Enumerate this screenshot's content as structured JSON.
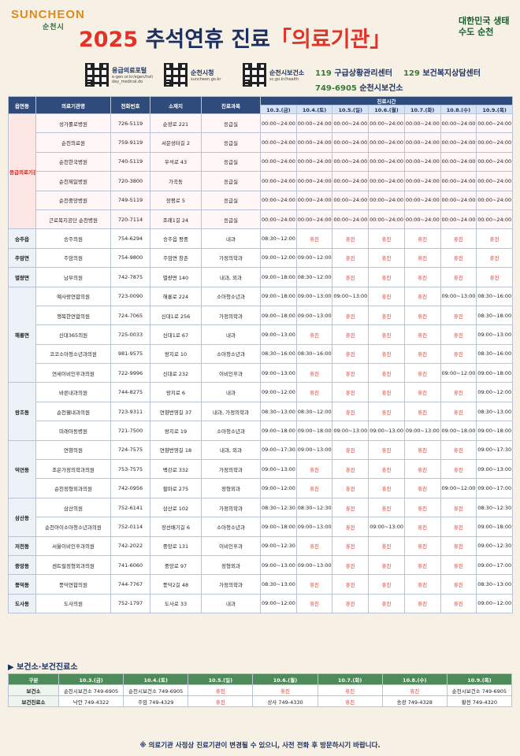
{
  "header": {
    "logo": "SUNCHEON",
    "logo_sub": "순천시",
    "year": "2025",
    "title": "추석연휴 진료",
    "title_bracket": "「의료기관」",
    "slogan": "대한민국 생태수도 순천",
    "links": [
      {
        "label": "응급의료포털",
        "url": "e-gen.or.kr/egen/holiday_medical.do"
      },
      {
        "label": "순천시청",
        "url": "suncheon.go.kr"
      },
      {
        "label": "순천시보건소",
        "url": "sc.go.kr/health"
      }
    ],
    "contacts": [
      {
        "number": "119",
        "label": "구급상황관리센터"
      },
      {
        "number": "129",
        "label": "보건복지상담센터"
      },
      {
        "number": "749-6905",
        "label": "순천시보건소"
      }
    ]
  },
  "table": {
    "columns": [
      "읍면동",
      "의료기관명",
      "전화번호",
      "소재지",
      "진료과목"
    ],
    "time_header": "진료시간",
    "dates": [
      "10.3.(금)",
      "10.4.(토)",
      "10.5.(일)",
      "10.6.(월)",
      "10.7.(화)",
      "10.8.(수)",
      "10.9.(목)"
    ],
    "closed": "휴진",
    "groups": [
      {
        "area": "응급의료기관",
        "emergency": true,
        "rows": [
          [
            "성가롤로병원",
            "726-5119",
            "순광로 221",
            "응급실",
            "00:00~24:00",
            "00:00~24:00",
            "00:00~24:00",
            "00:00~24:00",
            "00:00~24:00",
            "00:00~24:00",
            "00:00~24:00"
          ],
          [
            "순천의료원",
            "759-9119",
            "서문성터길 2",
            "응급실",
            "00:00~24:00",
            "00:00~24:00",
            "00:00~24:00",
            "00:00~24:00",
            "00:00~24:00",
            "00:00~24:00",
            "00:00~24:00"
          ],
          [
            "순천한국병원",
            "740-5119",
            "우석로 43",
            "응급실",
            "00:00~24:00",
            "00:00~24:00",
            "00:00~24:00",
            "00:00~24:00",
            "00:00~24:00",
            "00:00~24:00",
            "00:00~24:00"
          ],
          [
            "순천제일병원",
            "720-3800",
            "가곡동",
            "응급실",
            "00:00~24:00",
            "00:00~24:00",
            "00:00~24:00",
            "00:00~24:00",
            "00:00~24:00",
            "00:00~24:00",
            "00:00~24:00"
          ],
          [
            "순천중앙병원",
            "749-5119",
            "장평로 5",
            "응급실",
            "00:00~24:00",
            "00:00~24:00",
            "00:00~24:00",
            "00:00~24:00",
            "00:00~24:00",
            "00:00~24:00",
            "00:00~24:00"
          ],
          [
            "근로복지공단 순천병원",
            "720-7114",
            "조례1길 24",
            "응급실",
            "00:00~24:00",
            "00:00~24:00",
            "00:00~24:00",
            "00:00~24:00",
            "00:00~24:00",
            "00:00~24:00",
            "00:00~24:00"
          ]
        ]
      },
      {
        "area": "승주읍",
        "rows": [
          [
            "승주의원",
            "754-6294",
            "승주읍 평중",
            "내과",
            "08:30~12:00",
            "휴진",
            "휴진",
            "휴진",
            "휴진",
            "휴진",
            "휴진"
          ]
        ]
      },
      {
        "area": "주암면",
        "rows": [
          [
            "주암의원",
            "754-9800",
            "주암면 창촌",
            "가정의학과",
            "09:00~12:00",
            "09:00~12:00",
            "휴진",
            "휴진",
            "휴진",
            "휴진",
            "휴진"
          ]
        ]
      },
      {
        "area": "별량면",
        "rows": [
          [
            "남부의원",
            "742-7875",
            "별량면 140",
            "내과, 외과",
            "09:00~18:00",
            "08:30~12:00",
            "휴진",
            "휴진",
            "휴진",
            "휴진",
            "휴진"
          ]
        ]
      },
      {
        "area": "해룡면",
        "rows": [
          [
            "예사랑연합의원",
            "723-0090",
            "해룡로 224",
            "소아청소년과",
            "09:00~18:00",
            "09:00~13:00",
            "09:00~13:00",
            "휴진",
            "휴진",
            "09:00~13:00",
            "08:30~16:00"
          ],
          [
            "행복한연합의원",
            "724-7065",
            "신대1로 256",
            "가정의학과",
            "09:00~18:00",
            "09:00~13:00",
            "휴진",
            "휴진",
            "휴진",
            "휴진",
            "08:30~18:00"
          ],
          [
            "신대365의원",
            "725-0033",
            "신대1로 67",
            "내과",
            "09:00~13:00",
            "휴진",
            "휴진",
            "휴진",
            "휴진",
            "휴진",
            "09:00~13:00"
          ],
          [
            "코코소아청소년과의원",
            "981-9575",
            "왕지로 10",
            "소아청소년과",
            "08:30~16:00",
            "08:30~16:00",
            "휴진",
            "휴진",
            "휴진",
            "휴진",
            "08:30~16:00"
          ],
          [
            "연세이비인후과의원",
            "722-9996",
            "신대로 232",
            "이비인후과",
            "09:00~13:00",
            "휴진",
            "휴진",
            "휴진",
            "휴진",
            "09:00~12:00",
            "09:00~18:00"
          ]
        ]
      },
      {
        "area": "왕조동",
        "rows": [
          [
            "바른내과의원",
            "744-8275",
            "왕지로 6",
            "내과",
            "09:00~12:00",
            "휴진",
            "휴진",
            "휴진",
            "휴진",
            "휴진",
            "09:00~12:00"
          ],
          [
            "순천웰내과의원",
            "723-9311",
            "연향번영길 37",
            "내과, 가정의학과",
            "08:30~13:00",
            "08:30~12:00",
            "휴진",
            "휴진",
            "휴진",
            "휴진",
            "08:30~13:00"
          ],
          [
            "미래아동병원",
            "721-7500",
            "왕지로 19",
            "소아청소년과",
            "09:00~18:00",
            "09:00~18:00",
            "09:00~13:00",
            "09:00~13:00",
            "09:00~13:00",
            "09:00~18:00",
            "09:00~18:00"
          ]
        ]
      },
      {
        "area": "덕연동",
        "rows": [
          [
            "연향의원",
            "724-7575",
            "연향번영길 18",
            "내과, 외과",
            "09:00~17:30",
            "09:00~13:00",
            "휴진",
            "휴진",
            "휴진",
            "휴진",
            "09:00~17:30"
          ],
          [
            "조은가정의학과의원",
            "753-7575",
            "백강로 332",
            "가정의학과",
            "09:00~13:00",
            "휴진",
            "휴진",
            "휴진",
            "휴진",
            "휴진",
            "09:00~13:00"
          ],
          [
            "순천정형외과의원",
            "742-0956",
            "팔마로 275",
            "정형외과",
            "09:00~12:00",
            "휴진",
            "휴진",
            "휴진",
            "휴진",
            "09:00~12:00",
            "09:00~17:00"
          ]
        ]
      },
      {
        "area": "삼산동",
        "rows": [
          [
            "삼산의원",
            "752-6141",
            "삼산로 102",
            "가정의학과",
            "08:30~12:30",
            "08:30~12:30",
            "휴진",
            "휴진",
            "휴진",
            "휴진",
            "08:30~12:30"
          ],
          [
            "순천아이소아청소년과의원",
            "752-0114",
            "장선배기길 6",
            "소아청소년과",
            "09:00~18:00",
            "09:00~13:00",
            "휴진",
            "09:00~13:00",
            "휴진",
            "휴진",
            "09:00~18:00"
          ]
        ]
      },
      {
        "area": "저전동",
        "rows": [
          [
            "서울이비인후과의원",
            "742-2022",
            "중앙로 131",
            "이비인후과",
            "09:00~12:30",
            "휴진",
            "휴진",
            "휴진",
            "휴진",
            "휴진",
            "09:00~12:30"
          ]
        ]
      },
      {
        "area": "중앙동",
        "rows": [
          [
            "센트럴정형외과의원",
            "741-6060",
            "중앙로 97",
            "정형외과",
            "09:00~13:00",
            "09:00~13:00",
            "휴진",
            "휴진",
            "휴진",
            "휴진",
            "09:00~17:00"
          ]
        ]
      },
      {
        "area": "풍덕동",
        "rows": [
          [
            "풍덕연합의원",
            "744-7767",
            "풍덕2길 48",
            "가정의학과",
            "08:30~13:00",
            "휴진",
            "휴진",
            "휴진",
            "휴진",
            "휴진",
            "08:30~13:00"
          ]
        ]
      },
      {
        "area": "도사동",
        "rows": [
          [
            "도사의원",
            "752-1797",
            "도사로 33",
            "내과",
            "09:00~12:00",
            "휴진",
            "휴진",
            "휴진",
            "휴진",
            "휴진",
            "09:00~12:00"
          ]
        ]
      }
    ]
  },
  "section2": {
    "title": "▶ 보건소·보건진료소",
    "area_header": "구분",
    "rows": [
      {
        "area": "보건소",
        "cells": [
          "순천시보건소 749-6905",
          "순천시보건소 749-6905",
          "휴진",
          "휴진",
          "휴진",
          "휴진",
          "순천시보건소 749-6905"
        ]
      },
      {
        "area": "보건진료소",
        "cells": [
          "낙안 749-4322",
          "주암 749-4329",
          "휴진",
          "상사 749-4330",
          "휴진",
          "송광 749-4328",
          "황전 749-4320"
        ]
      }
    ]
  },
  "note": "※ 의료기관 사정상 진료기관이 변경될 수 있으니, 사전 전화 후 방문하시기 바랍니다."
}
